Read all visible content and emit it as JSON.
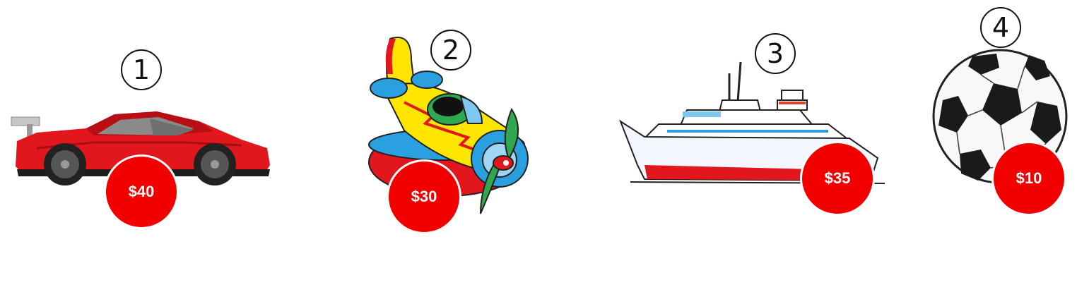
{
  "items": [
    {
      "number": "1",
      "icon": "car-icon",
      "price": "$40"
    },
    {
      "number": "2",
      "icon": "airplane-icon",
      "price": "$30"
    },
    {
      "number": "3",
      "icon": "ship-icon",
      "price": "$35"
    },
    {
      "number": "4",
      "icon": "soccer-ball-icon",
      "price": "$10"
    }
  ],
  "colors": {
    "price_badge": "#f20000",
    "number_border": "#111111"
  }
}
